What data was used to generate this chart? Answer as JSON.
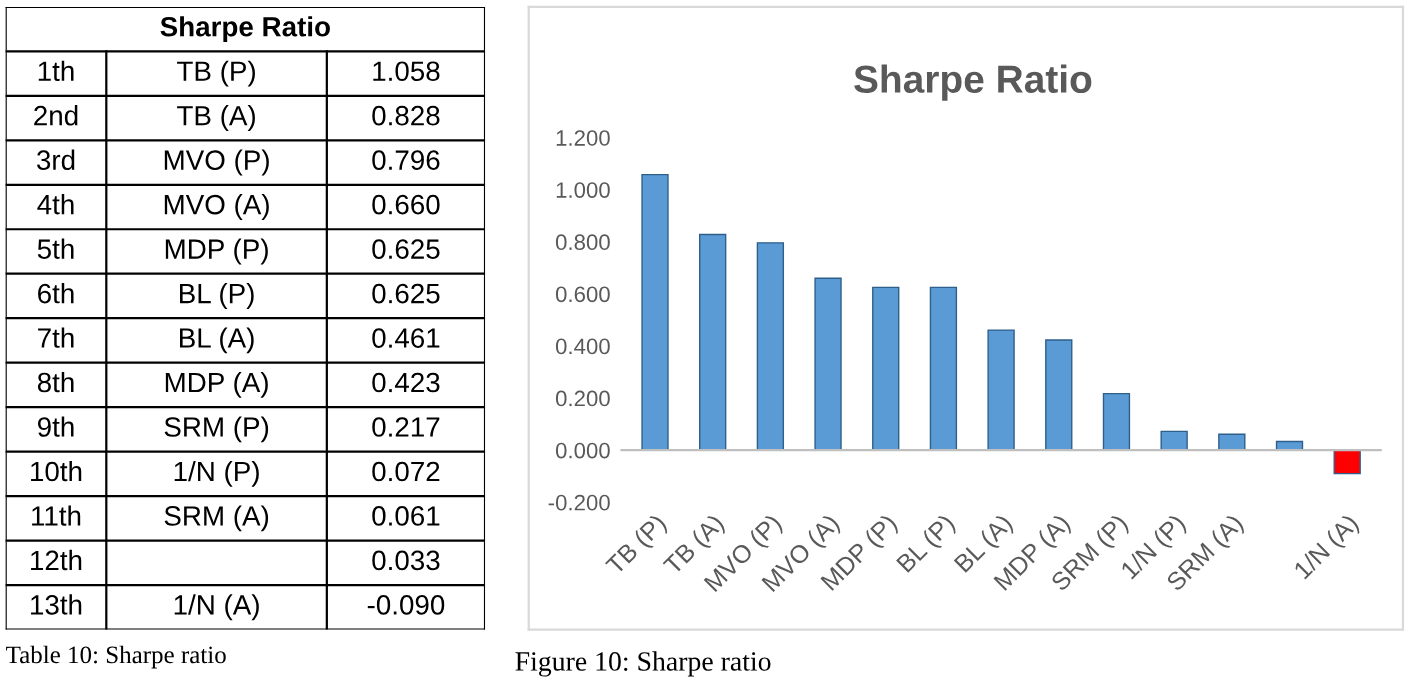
{
  "chart_data": {
    "type": "bar",
    "title": "Sharpe Ratio",
    "categories": [
      "TB (P)",
      "TB (A)",
      "MVO (P)",
      "MVO (A)",
      "MDP (P)",
      "BL (P)",
      "BL (A)",
      "MDP (A)",
      "SRM (P)",
      "1/N (P)",
      "SRM (A)",
      null,
      "1/N (A)"
    ],
    "values": [
      1.058,
      0.828,
      0.796,
      0.66,
      0.625,
      0.625,
      0.461,
      0.423,
      0.217,
      0.072,
      0.061,
      0.033,
      -0.09
    ],
    "colors": [
      "#5b9bd5",
      "#5b9bd5",
      "#5b9bd5",
      "#5b9bd5",
      "#5b9bd5",
      "#5b9bd5",
      "#5b9bd5",
      "#5b9bd5",
      "#5b9bd5",
      "#5b9bd5",
      "#5b9bd5",
      "#5b9bd5",
      "#ff0000"
    ],
    "ylim": [
      -0.2,
      1.2
    ],
    "yticks": [
      {
        "value": -0.2,
        "label": "-0.200"
      },
      {
        "value": 0,
        "label": "0.000"
      },
      {
        "value": 0.2,
        "label": "0.200"
      },
      {
        "value": 0.4,
        "label": "0.400"
      },
      {
        "value": 0.6,
        "label": "0.600"
      },
      {
        "value": 0.8,
        "label": "0.800"
      },
      {
        "value": 1.0,
        "label": "1.000"
      },
      {
        "value": 1.2,
        "label": "1.200"
      }
    ],
    "annotations": [
      "1th",
      "2nd",
      "3rd",
      "4th",
      "5th",
      "6th",
      "7th",
      "8th",
      "9th",
      "10th",
      "11th",
      "12th",
      "13th",
      "1.058",
      "0.828",
      "0.796",
      "0.660",
      "0.625",
      "0.625",
      "0.461",
      "0.423",
      "0.217",
      "0.072",
      "0.061",
      "0.033",
      "-0.090",
      "Table 10: Sharpe ratio",
      "Figure 10: Sharpe ratio"
    ]
  }
}
